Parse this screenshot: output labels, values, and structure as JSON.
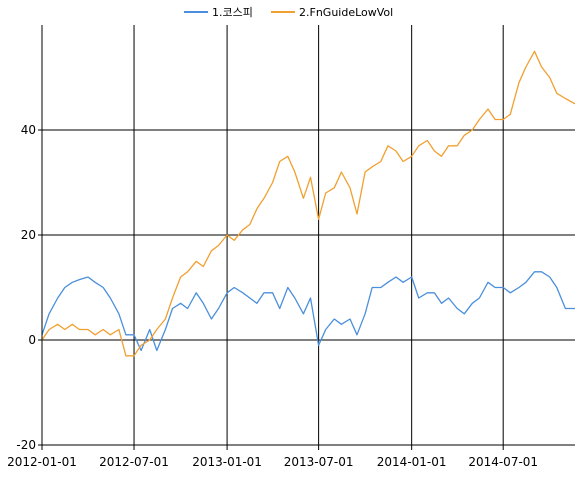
{
  "chart_data": {
    "type": "line",
    "title": "",
    "xlabel": "",
    "ylabel": "",
    "x_tick_labels": [
      "2012-01-01",
      "2012-07-01",
      "2013-01-01",
      "2013-07-01",
      "2014-01-01",
      "2014-07-01"
    ],
    "y_tick_labels": [
      "-20",
      "0",
      "20",
      "40"
    ],
    "ylim": [
      -20,
      60
    ],
    "xlim": [
      "2012-01-01",
      "2014-11-20"
    ],
    "grid": true,
    "legend_position": "top-center",
    "series": [
      {
        "name": "1.코스피",
        "color": "#4a8fdc",
        "x": [
          "2012-01-01",
          "2012-01-15",
          "2012-02-01",
          "2012-02-15",
          "2012-03-01",
          "2012-03-15",
          "2012-04-01",
          "2012-04-15",
          "2012-05-01",
          "2012-05-15",
          "2012-06-01",
          "2012-06-15",
          "2012-07-01",
          "2012-07-15",
          "2012-08-01",
          "2012-08-15",
          "2012-09-01",
          "2012-09-15",
          "2012-10-01",
          "2012-10-15",
          "2012-11-01",
          "2012-11-15",
          "2012-12-01",
          "2012-12-15",
          "2013-01-01",
          "2013-01-15",
          "2013-02-01",
          "2013-02-15",
          "2013-03-01",
          "2013-03-15",
          "2013-04-01",
          "2013-04-15",
          "2013-05-01",
          "2013-05-15",
          "2013-06-01",
          "2013-06-15",
          "2013-07-01",
          "2013-07-15",
          "2013-08-01",
          "2013-08-15",
          "2013-09-01",
          "2013-09-15",
          "2013-10-01",
          "2013-10-15",
          "2013-11-01",
          "2013-11-15",
          "2013-12-01",
          "2013-12-15",
          "2014-01-01",
          "2014-01-15",
          "2014-02-01",
          "2014-02-15",
          "2014-03-01",
          "2014-03-15",
          "2014-04-01",
          "2014-04-15",
          "2014-05-01",
          "2014-05-15",
          "2014-06-01",
          "2014-06-15",
          "2014-07-01",
          "2014-07-15",
          "2014-08-01",
          "2014-08-15",
          "2014-09-01",
          "2014-09-15",
          "2014-10-01",
          "2014-10-15",
          "2014-11-01",
          "2014-11-20"
        ],
        "y": [
          1,
          5,
          8,
          10,
          11,
          11.5,
          12,
          11,
          10,
          8,
          5,
          1,
          1,
          -2,
          2,
          -2,
          2,
          6,
          7,
          6,
          9,
          7,
          4,
          6,
          9,
          10,
          9,
          8,
          7,
          9,
          9,
          6,
          10,
          8,
          5,
          8,
          -1,
          2,
          4,
          3,
          4,
          1,
          5,
          10,
          10,
          11,
          12,
          11,
          12,
          8,
          9,
          9,
          7,
          8,
          6,
          5,
          7,
          8,
          11,
          10,
          10,
          9,
          10,
          11,
          13,
          13,
          12,
          10,
          6,
          6
        ]
      },
      {
        "name": "2.FnGuideLowVol",
        "color": "#f0a030",
        "x": [
          "2012-01-01",
          "2012-01-15",
          "2012-02-01",
          "2012-02-15",
          "2012-03-01",
          "2012-03-15",
          "2012-04-01",
          "2012-04-15",
          "2012-05-01",
          "2012-05-15",
          "2012-06-01",
          "2012-06-15",
          "2012-07-01",
          "2012-07-15",
          "2012-08-01",
          "2012-08-15",
          "2012-09-01",
          "2012-09-15",
          "2012-10-01",
          "2012-10-15",
          "2012-11-01",
          "2012-11-15",
          "2012-12-01",
          "2012-12-15",
          "2013-01-01",
          "2013-01-15",
          "2013-02-01",
          "2013-02-15",
          "2013-03-01",
          "2013-03-15",
          "2013-04-01",
          "2013-04-15",
          "2013-05-01",
          "2013-05-15",
          "2013-06-01",
          "2013-06-15",
          "2013-07-01",
          "2013-07-15",
          "2013-08-01",
          "2013-08-15",
          "2013-09-01",
          "2013-09-15",
          "2013-10-01",
          "2013-10-15",
          "2013-11-01",
          "2013-11-15",
          "2013-12-01",
          "2013-12-15",
          "2014-01-01",
          "2014-01-15",
          "2014-02-01",
          "2014-02-15",
          "2014-03-01",
          "2014-03-15",
          "2014-04-01",
          "2014-04-15",
          "2014-05-01",
          "2014-05-15",
          "2014-06-01",
          "2014-06-15",
          "2014-07-01",
          "2014-07-15",
          "2014-08-01",
          "2014-08-15",
          "2014-09-01",
          "2014-09-15",
          "2014-10-01",
          "2014-10-15",
          "2014-11-01",
          "2014-11-20"
        ],
        "y": [
          0,
          2,
          3,
          2,
          3,
          2,
          2,
          1,
          2,
          1,
          2,
          -3,
          -3,
          -1,
          0,
          2,
          4,
          8,
          12,
          13,
          15,
          14,
          17,
          18,
          20,
          19,
          21,
          22,
          25,
          27,
          30,
          34,
          35,
          32,
          27,
          31,
          23,
          28,
          29,
          32,
          29,
          24,
          32,
          33,
          34,
          37,
          36,
          34,
          35,
          37,
          38,
          36,
          35,
          37,
          37,
          39,
          40,
          42,
          44,
          42,
          42,
          43,
          49,
          52,
          55,
          52,
          50,
          47,
          46,
          45
        ]
      }
    ]
  }
}
